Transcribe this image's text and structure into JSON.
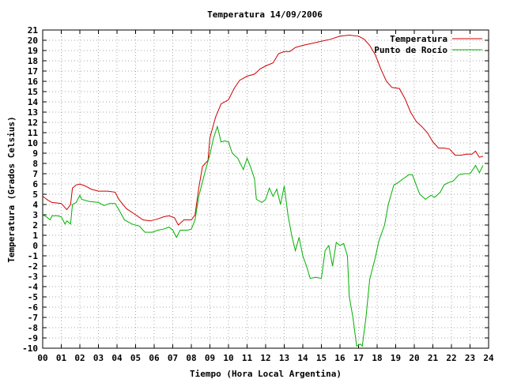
{
  "chart_data": {
    "type": "line",
    "title": "Temperatura 14/09/2006",
    "xlabel": "Tiempo (Hora Local Argentina)",
    "ylabel": "Temperatura (Grados Celsius)",
    "xlim": [
      0,
      24
    ],
    "ylim": [
      -10,
      21
    ],
    "x_ticks": [
      "00",
      "01",
      "02",
      "03",
      "04",
      "05",
      "06",
      "07",
      "08",
      "09",
      "10",
      "11",
      "12",
      "13",
      "14",
      "15",
      "16",
      "17",
      "18",
      "19",
      "20",
      "21",
      "22",
      "23",
      "24"
    ],
    "y_ticks": [
      21,
      20,
      19,
      18,
      17,
      16,
      15,
      14,
      13,
      12,
      11,
      10,
      9,
      8,
      7,
      6,
      5,
      4,
      3,
      2,
      1,
      0,
      -1,
      -2,
      -3,
      -4,
      -5,
      -6,
      -7,
      -8,
      -9,
      -10
    ],
    "grid": true,
    "legend_position": "top-right",
    "series": [
      {
        "name": "Temperatura",
        "color": "#cc0000",
        "points": [
          [
            0.0,
            4.8
          ],
          [
            0.3,
            4.4
          ],
          [
            0.5,
            4.2
          ],
          [
            1.0,
            4.1
          ],
          [
            1.3,
            3.5
          ],
          [
            1.5,
            4.0
          ],
          [
            1.6,
            5.6
          ],
          [
            1.8,
            5.9
          ],
          [
            2.0,
            6.0
          ],
          [
            2.3,
            5.8
          ],
          [
            2.6,
            5.5
          ],
          [
            3.0,
            5.3
          ],
          [
            3.5,
            5.3
          ],
          [
            3.9,
            5.2
          ],
          [
            4.1,
            4.5
          ],
          [
            4.5,
            3.6
          ],
          [
            5.0,
            3.0
          ],
          [
            5.4,
            2.5
          ],
          [
            5.8,
            2.4
          ],
          [
            6.2,
            2.6
          ],
          [
            6.5,
            2.8
          ],
          [
            6.8,
            2.9
          ],
          [
            7.1,
            2.7
          ],
          [
            7.3,
            2.0
          ],
          [
            7.6,
            2.5
          ],
          [
            8.0,
            2.5
          ],
          [
            8.2,
            3.0
          ],
          [
            8.4,
            5.6
          ],
          [
            8.6,
            7.7
          ],
          [
            8.9,
            8.3
          ],
          [
            9.0,
            10.5
          ],
          [
            9.3,
            12.5
          ],
          [
            9.6,
            13.8
          ],
          [
            10.0,
            14.2
          ],
          [
            10.3,
            15.3
          ],
          [
            10.6,
            16.1
          ],
          [
            11.0,
            16.5
          ],
          [
            11.4,
            16.7
          ],
          [
            11.7,
            17.2
          ],
          [
            12.0,
            17.5
          ],
          [
            12.4,
            17.8
          ],
          [
            12.7,
            18.7
          ],
          [
            13.0,
            18.9
          ],
          [
            13.3,
            18.9
          ],
          [
            13.6,
            19.3
          ],
          [
            14.0,
            19.5
          ],
          [
            14.5,
            19.7
          ],
          [
            15.0,
            19.9
          ],
          [
            15.5,
            20.1
          ],
          [
            16.0,
            20.4
          ],
          [
            16.5,
            20.5
          ],
          [
            17.0,
            20.4
          ],
          [
            17.3,
            20.1
          ],
          [
            17.6,
            19.5
          ],
          [
            17.9,
            18.6
          ],
          [
            18.2,
            17.2
          ],
          [
            18.5,
            16.0
          ],
          [
            18.8,
            15.4
          ],
          [
            19.2,
            15.3
          ],
          [
            19.5,
            14.3
          ],
          [
            19.8,
            13.0
          ],
          [
            20.1,
            12.1
          ],
          [
            20.4,
            11.6
          ],
          [
            20.7,
            11.0
          ],
          [
            21.0,
            10.1
          ],
          [
            21.3,
            9.5
          ],
          [
            21.6,
            9.5
          ],
          [
            21.9,
            9.4
          ],
          [
            22.2,
            8.8
          ],
          [
            22.5,
            8.8
          ],
          [
            22.8,
            8.9
          ],
          [
            23.1,
            8.9
          ],
          [
            23.3,
            9.2
          ],
          [
            23.5,
            8.6
          ],
          [
            23.7,
            8.7
          ]
        ]
      },
      {
        "name": "Punto de Rocío",
        "color": "#00b000",
        "points": [
          [
            0.0,
            3.0
          ],
          [
            0.2,
            2.8
          ],
          [
            0.4,
            2.5
          ],
          [
            0.5,
            2.9
          ],
          [
            0.8,
            2.9
          ],
          [
            1.0,
            2.8
          ],
          [
            1.2,
            2.1
          ],
          [
            1.3,
            2.4
          ],
          [
            1.5,
            2.1
          ],
          [
            1.6,
            4.0
          ],
          [
            1.8,
            4.2
          ],
          [
            2.0,
            4.9
          ],
          [
            2.1,
            4.5
          ],
          [
            2.5,
            4.3
          ],
          [
            3.0,
            4.2
          ],
          [
            3.3,
            3.9
          ],
          [
            3.6,
            4.1
          ],
          [
            3.9,
            4.1
          ],
          [
            4.1,
            3.5
          ],
          [
            4.4,
            2.5
          ],
          [
            4.8,
            2.1
          ],
          [
            5.2,
            1.9
          ],
          [
            5.5,
            1.3
          ],
          [
            5.9,
            1.3
          ],
          [
            6.2,
            1.5
          ],
          [
            6.5,
            1.6
          ],
          [
            6.8,
            1.8
          ],
          [
            7.0,
            1.5
          ],
          [
            7.2,
            0.8
          ],
          [
            7.4,
            1.5
          ],
          [
            7.8,
            1.5
          ],
          [
            8.0,
            1.6
          ],
          [
            8.2,
            2.5
          ],
          [
            8.4,
            4.8
          ],
          [
            8.7,
            6.9
          ],
          [
            9.0,
            8.9
          ],
          [
            9.2,
            10.5
          ],
          [
            9.4,
            11.6
          ],
          [
            9.6,
            10.1
          ],
          [
            9.8,
            10.2
          ],
          [
            10.0,
            10.1
          ],
          [
            10.2,
            9.0
          ],
          [
            10.5,
            8.5
          ],
          [
            10.8,
            7.4
          ],
          [
            11.0,
            8.5
          ],
          [
            11.2,
            7.6
          ],
          [
            11.4,
            6.5
          ],
          [
            11.5,
            4.5
          ],
          [
            11.8,
            4.2
          ],
          [
            12.0,
            4.5
          ],
          [
            12.2,
            5.6
          ],
          [
            12.4,
            4.8
          ],
          [
            12.6,
            5.5
          ],
          [
            12.8,
            4.0
          ],
          [
            13.0,
            5.8
          ],
          [
            13.2,
            3.0
          ],
          [
            13.4,
            1.0
          ],
          [
            13.6,
            -0.5
          ],
          [
            13.8,
            0.8
          ],
          [
            14.0,
            -1.0
          ],
          [
            14.2,
            -2.0
          ],
          [
            14.4,
            -3.2
          ],
          [
            14.7,
            -3.1
          ],
          [
            15.0,
            -3.2
          ],
          [
            15.2,
            -0.5
          ],
          [
            15.4,
            0.0
          ],
          [
            15.6,
            -2.0
          ],
          [
            15.8,
            0.3
          ],
          [
            16.0,
            0.0
          ],
          [
            16.2,
            0.2
          ],
          [
            16.4,
            -1.0
          ],
          [
            16.5,
            -5.0
          ],
          [
            16.7,
            -7.0
          ],
          [
            16.9,
            -9.8
          ],
          [
            17.1,
            -9.6
          ],
          [
            17.2,
            -9.8
          ],
          [
            17.4,
            -7.0
          ],
          [
            17.6,
            -3.3
          ],
          [
            17.9,
            -1.2
          ],
          [
            18.1,
            0.5
          ],
          [
            18.4,
            2.0
          ],
          [
            18.6,
            4.0
          ],
          [
            18.9,
            5.9
          ],
          [
            19.1,
            6.1
          ],
          [
            19.4,
            6.5
          ],
          [
            19.7,
            6.9
          ],
          [
            19.9,
            6.9
          ],
          [
            20.1,
            5.9
          ],
          [
            20.3,
            5.0
          ],
          [
            20.6,
            4.5
          ],
          [
            20.9,
            4.9
          ],
          [
            21.1,
            4.7
          ],
          [
            21.4,
            5.2
          ],
          [
            21.6,
            5.9
          ],
          [
            21.8,
            6.1
          ],
          [
            22.1,
            6.3
          ],
          [
            22.4,
            6.9
          ],
          [
            22.7,
            7.0
          ],
          [
            23.0,
            7.0
          ],
          [
            23.3,
            7.8
          ],
          [
            23.5,
            7.1
          ],
          [
            23.7,
            7.8
          ]
        ]
      }
    ]
  }
}
